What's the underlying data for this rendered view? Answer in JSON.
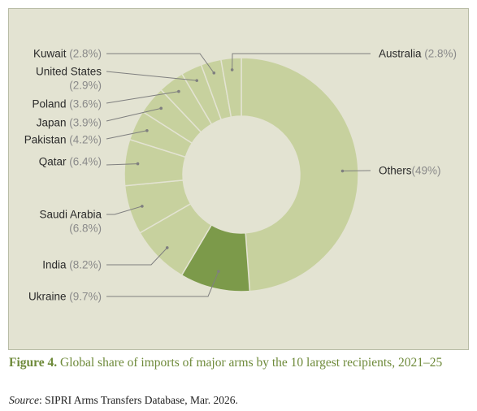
{
  "chart_data": {
    "type": "pie",
    "subtype": "donut",
    "start_angle_deg": 0,
    "direction": "clockwise",
    "colors": {
      "default": "#c7d19e",
      "highlight": "#7c9a4a",
      "stroke": "#e3e3d2",
      "leader": "#7f7f7f",
      "panel": "#e3e3d2"
    },
    "slices": [
      {
        "label": "Others",
        "pct_text": "(49%)",
        "value": 49.0,
        "highlight": false
      },
      {
        "label": "Ukraine",
        "pct_text": "(9.7%)",
        "value": 9.7,
        "highlight": true
      },
      {
        "label": "India",
        "pct_text": "(8.2%)",
        "value": 8.2,
        "highlight": false
      },
      {
        "label": "Saudi Arabia",
        "pct_text": "(6.8%)",
        "value": 6.8,
        "highlight": false
      },
      {
        "label": "Qatar",
        "pct_text": "(6.4%)",
        "value": 6.4,
        "highlight": false
      },
      {
        "label": "Pakistan",
        "pct_text": "(4.2%)",
        "value": 4.2,
        "highlight": false
      },
      {
        "label": "Japan",
        "pct_text": "(3.9%)",
        "value": 3.9,
        "highlight": false
      },
      {
        "label": "Poland",
        "pct_text": "(3.6%)",
        "value": 3.6,
        "highlight": false
      },
      {
        "label": "United States",
        "pct_text": "(2.9%)",
        "value": 2.9,
        "highlight": false
      },
      {
        "label": "Kuwait",
        "pct_text": "(2.8%)",
        "value": 2.8,
        "highlight": false
      },
      {
        "label": "Australia",
        "pct_text": "(2.8%)",
        "value": 2.8,
        "highlight": false
      }
    ]
  },
  "caption": {
    "figure_label": "Figure 4.",
    "text": " Global share of imports of major arms by the 10 largest recipients, 2021–25"
  },
  "source": {
    "label": "Source",
    "text": ": SIPRI Arms Transfers Database, Mar. 2026."
  }
}
